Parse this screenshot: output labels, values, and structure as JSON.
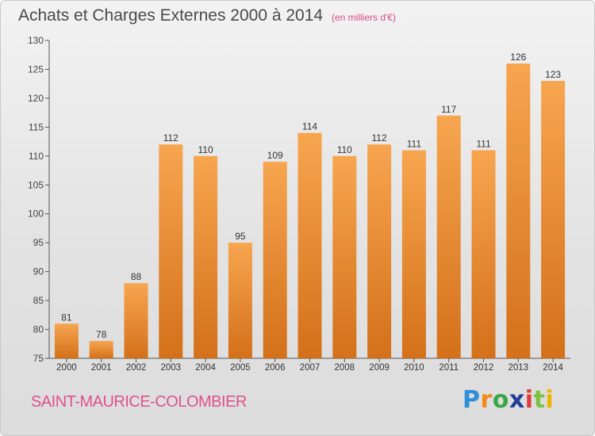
{
  "header": {
    "title": "Achats et Charges Externes 2000 à 2014",
    "unit_note": "(en milliers d'€)"
  },
  "footer": {
    "commune": "SAINT-MAURICE-COLOMBIER",
    "logo_text": "Proxiti"
  },
  "colors": {
    "bar_light": "#f7a54f",
    "bar_dark": "#d4701a",
    "commune_text": "#e0508c",
    "unit_text": "#d94d8a"
  },
  "chart_data": {
    "type": "bar",
    "title": "Achats et Charges Externes 2000 à 2014",
    "subtitle": "(en milliers d'€)",
    "xlabel": "",
    "ylabel": "",
    "categories": [
      "2000",
      "2001",
      "2002",
      "2003",
      "2004",
      "2005",
      "2006",
      "2007",
      "2008",
      "2009",
      "2010",
      "2011",
      "2012",
      "2013",
      "2014"
    ],
    "values": [
      81,
      78,
      88,
      112,
      110,
      95,
      109,
      114,
      110,
      112,
      111,
      117,
      111,
      126,
      123
    ],
    "ylim": [
      75,
      130
    ],
    "yticks": [
      75,
      80,
      85,
      90,
      95,
      100,
      105,
      110,
      115,
      120,
      125,
      130
    ],
    "grid": false,
    "data_labels": true
  }
}
